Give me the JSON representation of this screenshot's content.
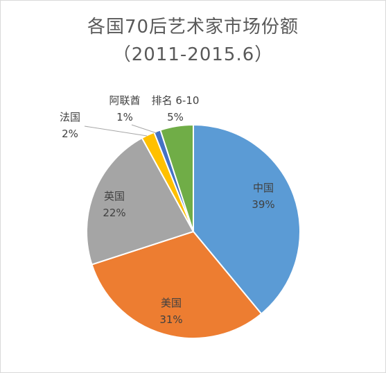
{
  "chart_data": {
    "type": "pie",
    "title": "各国70后艺术家市场份额",
    "subtitle": "（2011-2015.6）",
    "slices": [
      {
        "name": "中国",
        "value": 39,
        "label": "39%",
        "color": "#5b9bd5"
      },
      {
        "name": "美国",
        "value": 31,
        "label": "31%",
        "color": "#ed7d31"
      },
      {
        "name": "英国",
        "value": 22,
        "label": "22%",
        "color": "#a5a5a5"
      },
      {
        "name": "法国",
        "value": 2,
        "label": "2%",
        "color": "#ffc000"
      },
      {
        "name": "阿联酋",
        "value": 1,
        "label": "1%",
        "color": "#4472c4"
      },
      {
        "name": "排名 6-10",
        "value": 5,
        "label": "5%",
        "color": "#70ad47"
      }
    ]
  }
}
